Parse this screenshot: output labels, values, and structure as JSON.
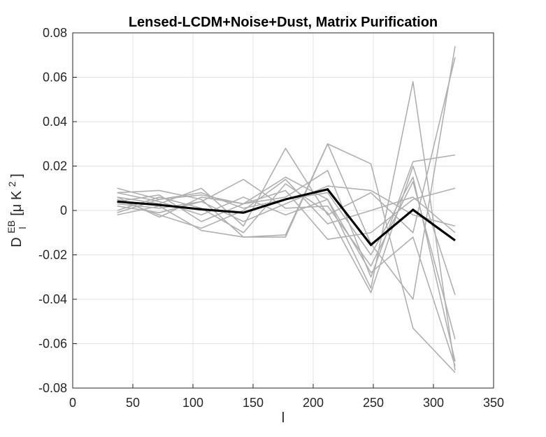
{
  "chart_data": {
    "type": "line",
    "title": "Lensed-LCDM+Noise+Dust, Matrix Purification",
    "xlabel": "l",
    "ylabel": {
      "main": "D",
      "superscript": "EB",
      "subscript": "l",
      "units_prefix": "[μ K",
      "units_power": "2",
      "units_suffix": "]"
    },
    "xlim": [
      0,
      350
    ],
    "ylim": [
      -0.08,
      0.08
    ],
    "xticks": [
      0,
      50,
      100,
      150,
      200,
      250,
      300,
      350
    ],
    "yticks": [
      -0.08,
      -0.06,
      -0.04,
      -0.02,
      0,
      0.02,
      0.04,
      0.06,
      0.08
    ],
    "xtick_labels": [
      "0",
      "50",
      "100",
      "150",
      "200",
      "250",
      "300",
      "350"
    ],
    "ytick_labels": [
      "-0.08",
      "-0.06",
      "-0.04",
      "-0.02",
      "0",
      "0.02",
      "0.04",
      "0.06",
      "0.08"
    ],
    "grid": true,
    "x": [
      37,
      72,
      107,
      142,
      177,
      212,
      248,
      283,
      318
    ],
    "background_color": "#b0b0b0",
    "mean_color": "#000000",
    "background_series": [
      {
        "values": [
          0.01,
          0.005,
          0.007,
          0.003,
          0.015,
          0.005,
          -0.035,
          0.058,
          -0.072
        ]
      },
      {
        "values": [
          0.008,
          0.009,
          0.005,
          -0.012,
          -0.012,
          0.03,
          -0.015,
          -0.04,
          0.074
        ]
      },
      {
        "values": [
          0.006,
          0.003,
          0.01,
          -0.007,
          0.028,
          -0.002,
          0.008,
          -0.01,
          0.069
        ]
      },
      {
        "values": [
          0.004,
          0.007,
          -0.005,
          0.003,
          0.006,
          0.018,
          -0.03,
          0.022,
          0.025
        ]
      },
      {
        "values": [
          0.002,
          -0.001,
          0.004,
          0.014,
          0.001,
          0.002,
          -0.025,
          0.013,
          -0.058
        ]
      },
      {
        "values": [
          0.0,
          0.006,
          0.001,
          -0.01,
          0.012,
          -0.001,
          -0.037,
          0.02,
          -0.038
        ]
      },
      {
        "values": [
          -0.002,
          0.002,
          -0.009,
          -0.012,
          -0.011,
          0.03,
          0.021,
          -0.053,
          -0.073
        ]
      },
      {
        "values": [
          0.006,
          -0.003,
          0.006,
          0.003,
          0.009,
          -0.013,
          -0.01,
          0.005,
          0.01
        ]
      },
      {
        "values": [
          0.003,
          0.001,
          0.004,
          -0.005,
          0.003,
          0.011,
          0.009,
          -0.002,
          -0.007
        ]
      },
      {
        "values": [
          0.008,
          0.004,
          -0.002,
          0.006,
          -0.002,
          0.005,
          -0.028,
          -0.012,
          -0.07
        ]
      },
      {
        "values": [
          -0.001,
          0.005,
          0.008,
          0.001,
          0.005,
          0.008,
          -0.02,
          0.015,
          -0.068
        ]
      },
      {
        "values": [
          0.005,
          -0.002,
          -0.008,
          0.0,
          0.014,
          -0.006,
          0.0,
          0.006,
          -0.01
        ]
      }
    ],
    "mean_series": {
      "values": [
        0.004,
        0.0025,
        0.0005,
        -0.001,
        0.005,
        0.0095,
        -0.0155,
        0.0003,
        -0.0135
      ]
    }
  }
}
